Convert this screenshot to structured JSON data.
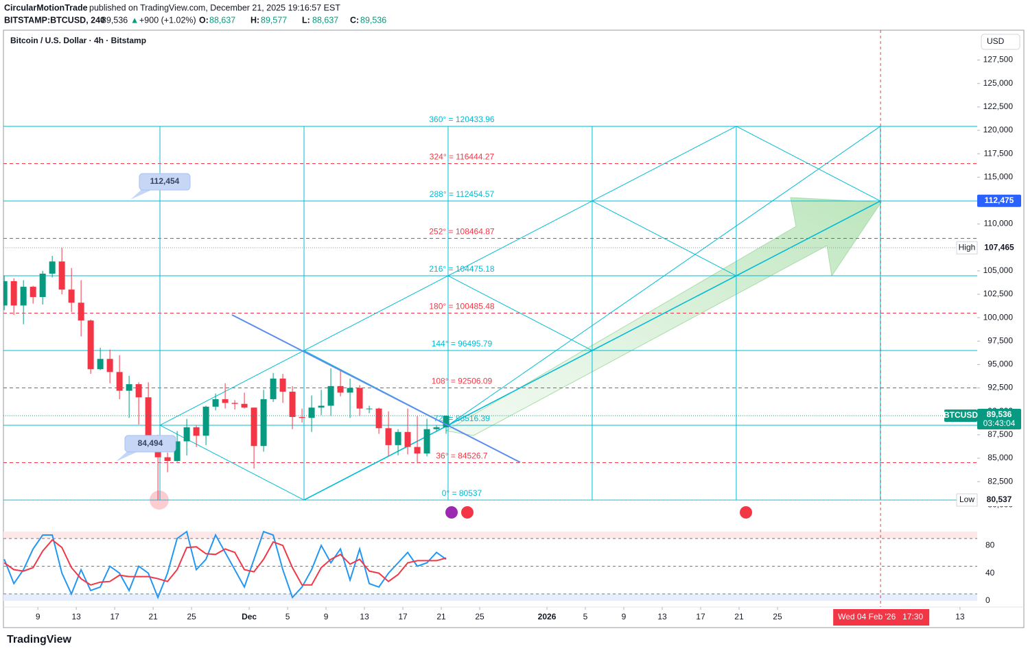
{
  "header": {
    "author": "CircularMotionTrade",
    "published": "published on TradingView.com, December 21, 2025 19:16:57 EST",
    "symbol": "BITSTAMP:BTCUSD, 240",
    "last": "89,536",
    "arrow": "▲",
    "change": "+900 (+1.02%)",
    "ohlc": [
      {
        "key": "O:",
        "value": "88,637"
      },
      {
        "key": "H:",
        "value": "89,577"
      },
      {
        "key": "L:",
        "value": "88,637"
      },
      {
        "key": "C:",
        "value": "89,536"
      }
    ]
  },
  "footer": {
    "brand": "TradingView"
  },
  "chart_data": {
    "type": "candlestick",
    "title": "Bitcoin / U.S. Dollar · 4h · Bitstamp",
    "currency": "USD",
    "up_color": "#089981",
    "down_color": "#f23645",
    "x": [
      "2025-11-05",
      "2025-11-06",
      "2025-11-07",
      "2025-11-08",
      "2025-11-09",
      "2025-11-10",
      "2025-11-11",
      "2025-11-12",
      "2025-11-13",
      "2025-11-14",
      "2025-11-15",
      "2025-11-16",
      "2025-11-17",
      "2025-11-18",
      "2025-11-19",
      "2025-11-20",
      "2025-11-21",
      "2025-11-22",
      "2025-11-23",
      "2025-11-24",
      "2025-11-25",
      "2025-11-26",
      "2025-11-27",
      "2025-11-28",
      "2025-11-29",
      "2025-11-30",
      "2025-12-01",
      "2025-12-02",
      "2025-12-03",
      "2025-12-04",
      "2025-12-05",
      "2025-12-06",
      "2025-12-07",
      "2025-12-08",
      "2025-12-09",
      "2025-12-10",
      "2025-12-11",
      "2025-12-12",
      "2025-12-13",
      "2025-12-14",
      "2025-12-15",
      "2025-12-16",
      "2025-12-17",
      "2025-12-18",
      "2025-12-19",
      "2025-12-20",
      "2025-12-21"
    ],
    "open": [
      101300,
      103900,
      101300,
      103300,
      102200,
      104700,
      106000,
      103000,
      101600,
      99700,
      94500,
      95600,
      94200,
      92200,
      92900,
      91500,
      86600,
      85100,
      84700,
      86800,
      88300,
      87400,
      90500,
      91300,
      90900,
      90800,
      90400,
      86300,
      91300,
      93500,
      92100,
      89400,
      89300,
      90400,
      90600,
      92700,
      92000,
      92500,
      90300,
      90300,
      88200,
      86400,
      87800,
      86200,
      85500,
      88100,
      88300
    ],
    "high": [
      104500,
      104200,
      104000,
      103400,
      105000,
      106600,
      107465,
      105300,
      104000,
      99800,
      96800,
      96600,
      96000,
      93800,
      93100,
      93100,
      87500,
      85600,
      87900,
      89200,
      88500,
      90600,
      91900,
      93000,
      91200,
      92000,
      90400,
      92300,
      94100,
      94000,
      92700,
      90300,
      91700,
      92300,
      94600,
      94500,
      93500,
      92800,
      90600,
      90400,
      90000,
      88100,
      90300,
      89500,
      89200,
      88500,
      89577
    ],
    "low": [
      100800,
      100300,
      99300,
      101500,
      101400,
      104300,
      102500,
      100600,
      98000,
      94000,
      94400,
      93000,
      91300,
      89300,
      88600,
      86300,
      80537,
      83500,
      84600,
      85300,
      86200,
      86400,
      90100,
      90300,
      90200,
      90300,
      83900,
      85700,
      91000,
      90900,
      88100,
      88800,
      87800,
      89600,
      89500,
      91600,
      89300,
      89500,
      89800,
      87600,
      85200,
      85300,
      85400,
      84450,
      85200,
      87900,
      87600
    ],
    "close": [
      103900,
      101300,
      103300,
      102200,
      104700,
      106000,
      103000,
      101600,
      99700,
      94500,
      95600,
      94200,
      92200,
      92900,
      91500,
      86600,
      85100,
      84700,
      86800,
      88300,
      87400,
      90500,
      91300,
      90900,
      90800,
      90400,
      86300,
      91300,
      93500,
      92100,
      89400,
      89300,
      90400,
      90600,
      92700,
      92000,
      92500,
      90300,
      90300,
      88200,
      86400,
      87800,
      86200,
      85500,
      88100,
      88300,
      89536
    ],
    "xlim": [
      "2025-11-05T10:00:00Z",
      "2026-02-14T19:00:00Z"
    ],
    "xticks": [
      {
        "value": "2025-11-09",
        "label": "9"
      },
      {
        "value": "2025-11-13",
        "label": "13"
      },
      {
        "value": "2025-11-17",
        "label": "17"
      },
      {
        "value": "2025-11-21",
        "label": "21"
      },
      {
        "value": "2025-11-25",
        "label": "25"
      },
      {
        "value": "2025-12-01",
        "label": "Dec"
      },
      {
        "value": "2025-12-05",
        "label": "5"
      },
      {
        "value": "2025-12-09",
        "label": "9"
      },
      {
        "value": "2025-12-13",
        "label": "13"
      },
      {
        "value": "2025-12-17",
        "label": "17"
      },
      {
        "value": "2025-12-21",
        "label": "21"
      },
      {
        "value": "2025-12-25",
        "label": "25"
      },
      {
        "value": "2026-01-01",
        "label": "2026"
      },
      {
        "value": "2026-01-05",
        "label": "5"
      },
      {
        "value": "2026-01-09",
        "label": "9"
      },
      {
        "value": "2026-01-13",
        "label": "13"
      },
      {
        "value": "2026-01-17",
        "label": "17"
      },
      {
        "value": "2026-01-21",
        "label": "21"
      },
      {
        "value": "2026-01-25",
        "label": "25"
      },
      {
        "value": "2026-02-13",
        "label": "13"
      }
    ],
    "ylim": [
      77531,
      130690
    ],
    "yticks": [
      {
        "value": 80000,
        "label": "80,000"
      },
      {
        "value": 82500,
        "label": "82,500"
      },
      {
        "value": 85000,
        "label": "85,000"
      },
      {
        "value": 87500,
        "label": "87,500"
      },
      {
        "value": 90000,
        "label": "90,000"
      },
      {
        "value": 92500,
        "label": "92,500"
      },
      {
        "value": 95000,
        "label": "95,000"
      },
      {
        "value": 97500,
        "label": "97,500"
      },
      {
        "value": 100000,
        "label": "100,000"
      },
      {
        "value": 102500,
        "label": "102,500"
      },
      {
        "value": 105000,
        "label": "105,000"
      },
      {
        "value": 107500,
        "label": "107,500"
      },
      {
        "value": 110000,
        "label": "110,000"
      },
      {
        "value": 112500,
        "label": "112,500"
      },
      {
        "value": 115000,
        "label": "115,000"
      },
      {
        "value": 117500,
        "label": "117,500"
      },
      {
        "value": 120000,
        "label": "120,000"
      },
      {
        "value": 122500,
        "label": "122,500"
      },
      {
        "value": 125000,
        "label": "125,000"
      },
      {
        "value": 127500,
        "label": "127,500"
      }
    ],
    "gann_box": {
      "start": "2025-11-21T17:00:00Z",
      "end": "2026-02-04T17:00:00Z",
      "levels": [
        {
          "value": 80537,
          "label": "0° = 80537",
          "color": "#00bcd4"
        },
        {
          "value": 84526.7,
          "label": "36° = 84526.7",
          "color": "#f23645"
        },
        {
          "value": 88516.39,
          "label": "72° = 88516.39",
          "color": "#00bcd4"
        },
        {
          "value": 92506.09,
          "label": "108° = 92506.09",
          "color": "#f23645"
        },
        {
          "value": 96495.79,
          "label": "144° = 96495.79",
          "color": "#00bcd4"
        },
        {
          "value": 100485.48,
          "label": "180° = 100485.48",
          "color": "#f23645"
        },
        {
          "value": 104475.18,
          "label": "216° = 104475.18",
          "color": "#00bcd4"
        },
        {
          "value": 108464.87,
          "label": "252° = 108464.87",
          "color": "#f23645"
        },
        {
          "value": 112454.57,
          "label": "288° = 112454.57",
          "color": "#00bcd4"
        },
        {
          "value": 116444.27,
          "label": "324° = 116444.27",
          "color": "#f23645"
        },
        {
          "value": 120433.96,
          "label": "360° = 120433.96",
          "color": "#00bcd4"
        }
      ]
    },
    "trendline": {
      "color": "#5b8def",
      "start": [
        "2025-11-29T05:00:00Z",
        100300
      ],
      "end": [
        "2025-12-29T05:00:00Z",
        84560
      ]
    },
    "callouts": [
      {
        "value": 112454,
        "label": "112,454"
      },
      {
        "value": 84494,
        "label": "84,494"
      }
    ],
    "price_tags": {
      "target": {
        "value": 112475,
        "label": "112,475",
        "color": "#2962ff"
      },
      "high": {
        "name": "High",
        "value": 107465,
        "label": "107,465"
      },
      "last": {
        "name": "BTCUSD",
        "value": 89536,
        "label": "89,536",
        "countdown": "03:43:04",
        "color": "#089981"
      },
      "low": {
        "name": "Low",
        "value": 80537,
        "label": "80,537"
      }
    },
    "cursor": {
      "value": "2026-02-04T17:30:00Z",
      "label": "Wed 04 Feb '26",
      "time": "17:30",
      "color": "#f23645"
    },
    "oscillator": {
      "ylim": [
        0,
        100
      ],
      "yticks": [
        0,
        40,
        80
      ],
      "bands": [
        10,
        50,
        90
      ],
      "series": [
        {
          "color": "#2196f3",
          "values": [
            60,
            25,
            45,
            75,
            95,
            95,
            40,
            10,
            45,
            15,
            20,
            50,
            40,
            15,
            50,
            40,
            5,
            40,
            90,
            100,
            45,
            60,
            95,
            70,
            45,
            20,
            60,
            100,
            95,
            45,
            5,
            20,
            45,
            80,
            55,
            75,
            30,
            75,
            25,
            20,
            40,
            55,
            70,
            50,
            55,
            70,
            60
          ]
        },
        {
          "color": "#f23645",
          "values": [
            55,
            45,
            43,
            48,
            72,
            88,
            77,
            48,
            32,
            23,
            27,
            28,
            37,
            35,
            35,
            35,
            32,
            28,
            45,
            77,
            78,
            68,
            67,
            75,
            70,
            45,
            42,
            60,
            85,
            80,
            48,
            23,
            23,
            48,
            60,
            67,
            53,
            60,
            43,
            40,
            28,
            38,
            55,
            58,
            58,
            58,
            62
          ]
        }
      ]
    }
  }
}
